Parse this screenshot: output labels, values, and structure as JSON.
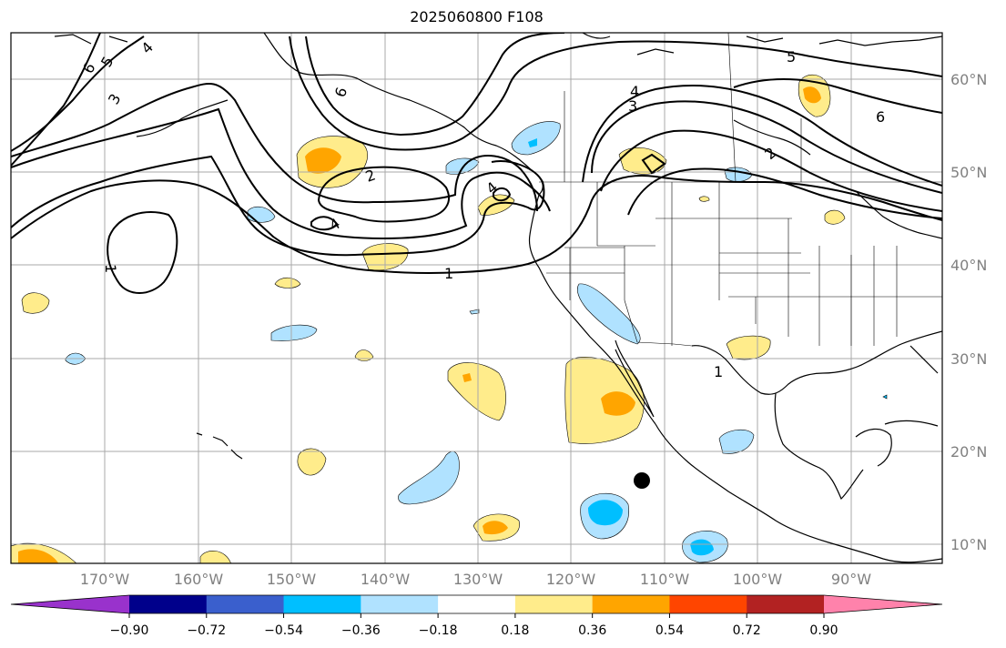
{
  "title": "2025060800 F108",
  "map": {
    "latitude_labels": [
      "10°N",
      "20°N",
      "30°N",
      "40°N",
      "50°N",
      "60°N"
    ],
    "longitude_labels": [
      "170°W",
      "160°W",
      "150°W",
      "140°W",
      "130°W",
      "120°W",
      "110°W",
      "100°W",
      "90°W"
    ],
    "contour_labels": [
      "6",
      "5",
      "4",
      "3",
      "6",
      "2",
      "4",
      "4",
      "1",
      "1",
      "5",
      "4",
      "3",
      "6",
      "2",
      "1"
    ],
    "marker": "storm-center-dot"
  },
  "colorbar": {
    "tick_labels": [
      "−0.90",
      "−0.72",
      "−0.54",
      "−0.36",
      "−0.18",
      "0.18",
      "0.36",
      "0.54",
      "0.72",
      "0.90"
    ],
    "colors": [
      "#9932cc",
      "#00008b",
      "#3a5fcd",
      "#00bfff",
      "#b0e2ff",
      "#ffffff",
      "#ffec8b",
      "#ffa500",
      "#ff4500",
      "#b22222",
      "#ff82ab"
    ]
  }
}
